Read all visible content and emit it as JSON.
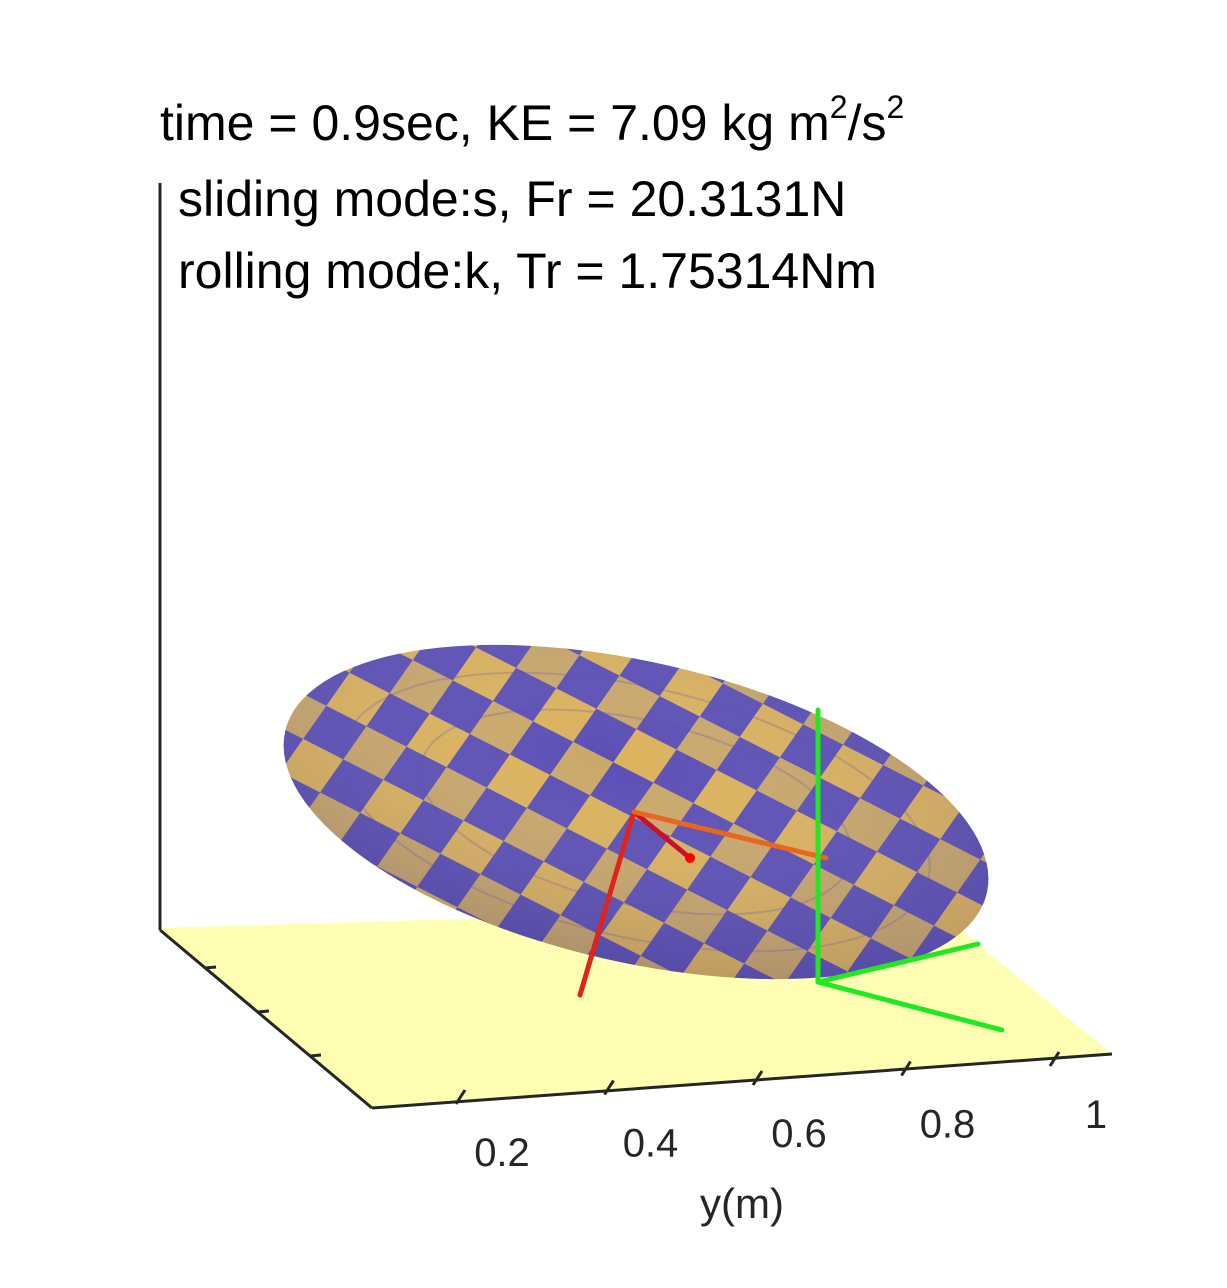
{
  "title": {
    "line1_prefix": "time = 0.9sec, KE = 7.09 kg m",
    "line1_sup1": "2",
    "line1_mid": "/s",
    "line1_sup2": "2",
    "line2": "sliding mode:s, Fr = 20.3131N",
    "line3": "rolling mode:k, Tr = 1.75314Nm"
  },
  "axes": {
    "y_axis": {
      "label": "y(m)",
      "ticks": [
        {
          "value": 0.2,
          "label": "0.2"
        },
        {
          "value": 0.4,
          "label": "0.4"
        },
        {
          "value": 0.6,
          "label": "0.6"
        },
        {
          "value": 0.8,
          "label": "0.8"
        },
        {
          "value": 1.0,
          "label": "1"
        }
      ]
    }
  },
  "colors": {
    "ground_plane": "#ffffb3",
    "ellipsoid_color_a": "#f2c94c",
    "ellipsoid_color_b": "#5b4fb5",
    "frame_x_axis": "#ff0000",
    "frame_y_axis": "#ff8000",
    "frame_z_axis": "#800080",
    "contact_frame": "#00ff00",
    "axis_line": "#262626"
  }
}
